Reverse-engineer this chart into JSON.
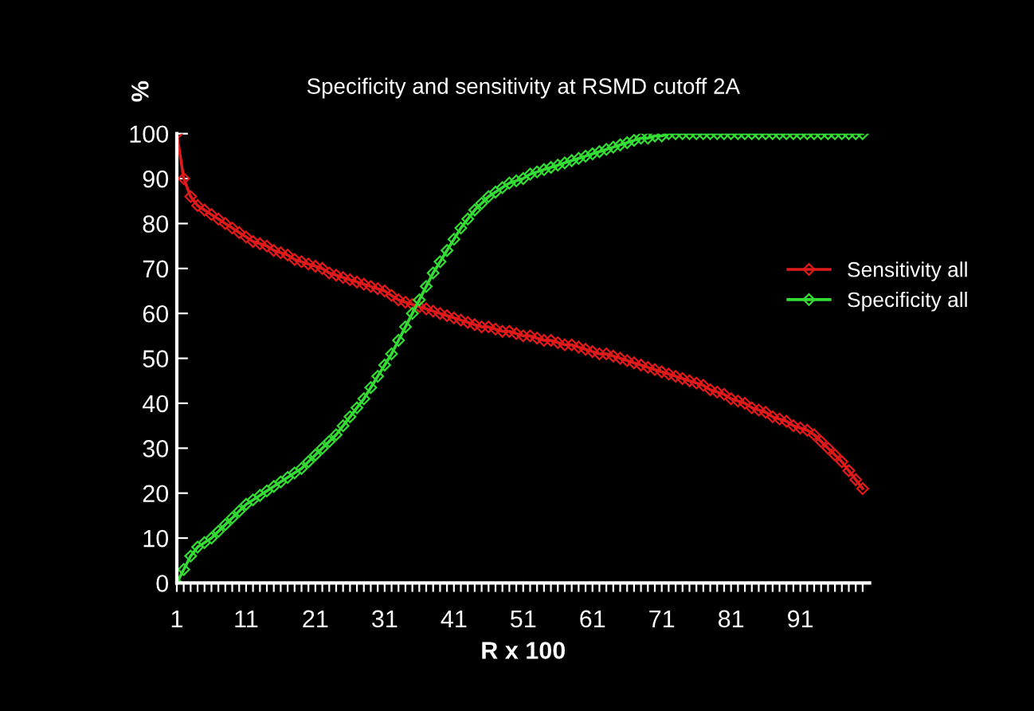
{
  "chart_data": {
    "type": "line",
    "title": "Specificity and sensitivity at RSMD cutoff 2A",
    "xlabel": "R x 100",
    "ylabel": "%",
    "categories": [
      "1",
      null,
      null,
      null,
      null,
      null,
      null,
      null,
      null,
      null,
      "11",
      null,
      null,
      null,
      null,
      null,
      null,
      null,
      null,
      null,
      "21",
      null,
      null,
      null,
      null,
      null,
      null,
      null,
      null,
      null,
      "31",
      null,
      null,
      null,
      null,
      null,
      null,
      null,
      null,
      null,
      "41",
      null,
      null,
      null,
      null,
      null,
      null,
      null,
      null,
      null,
      "51",
      null,
      null,
      null,
      null,
      null,
      null,
      null,
      null,
      null,
      "61",
      null,
      null,
      null,
      null,
      null,
      null,
      null,
      null,
      null,
      "71",
      null,
      null,
      null,
      null,
      null,
      null,
      null,
      null,
      null,
      "81",
      null,
      null,
      null,
      null,
      null,
      null,
      null,
      null,
      null,
      "91",
      null,
      null,
      null,
      null,
      null,
      null,
      null,
      null,
      null
    ],
    "series": [
      {
        "name": "Sensitivity all",
        "color": "#e01a1a",
        "values": [
          100,
          90,
          86,
          84,
          83,
          82,
          81,
          80,
          79,
          78,
          77,
          76,
          75.5,
          75,
          74,
          73.5,
          73,
          72,
          71.5,
          71,
          70.5,
          70,
          69,
          68.5,
          68,
          67.5,
          67,
          66.5,
          66,
          65.5,
          65,
          64,
          63,
          62.5,
          62,
          61.5,
          61,
          60.5,
          60,
          59.5,
          59,
          58.5,
          58,
          57.5,
          57,
          57,
          56.5,
          56,
          56,
          55.5,
          55,
          55,
          54.5,
          54,
          54,
          53.5,
          53,
          53,
          52.5,
          52,
          51.5,
          51,
          51,
          50.5,
          50,
          49.5,
          49,
          48.5,
          48,
          47.5,
          47,
          46.5,
          46,
          45.5,
          45,
          44.5,
          44,
          43,
          42.5,
          42,
          41,
          40.5,
          40,
          39,
          38.5,
          38,
          37,
          36.5,
          36,
          35,
          34.5,
          34,
          33,
          31.5,
          30,
          28.5,
          27,
          25,
          23,
          21
        ]
      },
      {
        "name": "Specificity all",
        "color": "#33dd33",
        "values": [
          0,
          3,
          6,
          8,
          9,
          10,
          11.5,
          13,
          14.5,
          16,
          17.5,
          18.5,
          19.5,
          20.5,
          21.5,
          22.5,
          23.5,
          24.5,
          25.5,
          27,
          28.5,
          30,
          31.5,
          33,
          35,
          37,
          39,
          41,
          43.5,
          46,
          48.5,
          51,
          54,
          57,
          60,
          63,
          66,
          69,
          71.5,
          74,
          76.5,
          79,
          81,
          83,
          84.5,
          86,
          87,
          88,
          89,
          89.5,
          90,
          91,
          91.5,
          92,
          92.5,
          93,
          93.5,
          94,
          94.5,
          95,
          95.5,
          96,
          96.5,
          97,
          97.5,
          98,
          98.5,
          99,
          99,
          99.5,
          99.5,
          100,
          100,
          100,
          100,
          100,
          100,
          100,
          100,
          100,
          100,
          100,
          100,
          100,
          100,
          100,
          100,
          100,
          100,
          100,
          100,
          100,
          100,
          100,
          100,
          100,
          100,
          100,
          100,
          100
        ]
      }
    ],
    "ylim": [
      0,
      100
    ],
    "yticks": [
      0,
      10,
      20,
      30,
      40,
      50,
      60,
      70,
      80,
      90,
      100
    ],
    "grid": false,
    "legend": "right",
    "marker": "diamond",
    "line_style": "solid"
  }
}
